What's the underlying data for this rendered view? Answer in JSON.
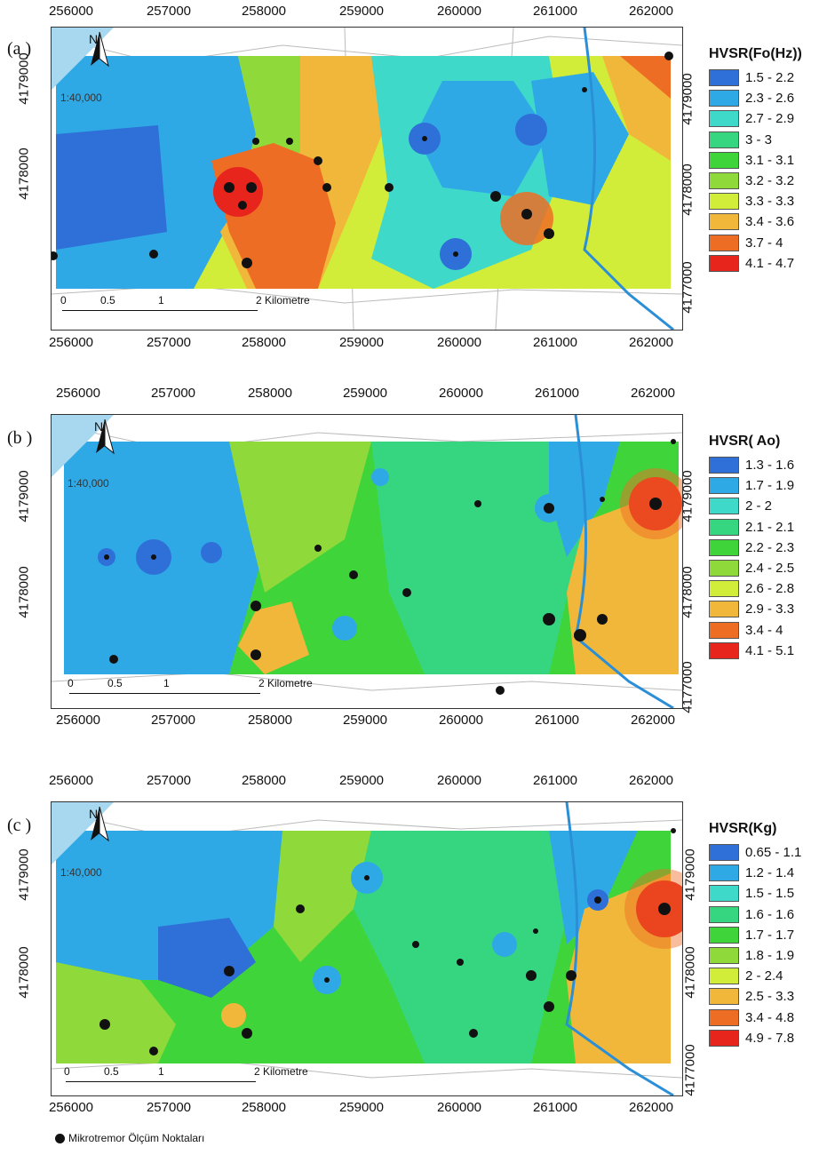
{
  "panels": [
    {
      "letter": "(a )",
      "legend_title": "HVSR(Fo(Hz))",
      "legend": [
        {
          "label": "1.5 - 2.2",
          "color": "#2f6fd8"
        },
        {
          "label": "2.3 - 2.6",
          "color": "#2fa9e6"
        },
        {
          "label": "2.7 - 2.9",
          "color": "#3fd9c9"
        },
        {
          "label": "3 - 3",
          "color": "#36d680"
        },
        {
          "label": "3.1 - 3.1",
          "color": "#3fd43a"
        },
        {
          "label": "3.2 - 3.2",
          "color": "#8fd93a"
        },
        {
          "label": "3.3 - 3.3",
          "color": "#d2ec3a"
        },
        {
          "label": "3.4 - 3.6",
          "color": "#f1b73a"
        },
        {
          "label": "3.7 - 4",
          "color": "#ee6d24"
        },
        {
          "label": "4.1 - 4.7",
          "color": "#e8251c"
        }
      ]
    },
    {
      "letter": "(b )",
      "legend_title": "HVSR( Ao)",
      "legend": [
        {
          "label": "1.3 - 1.6",
          "color": "#2f6fd8"
        },
        {
          "label": "1.7 - 1.9",
          "color": "#2fa9e6"
        },
        {
          "label": "2 - 2",
          "color": "#3fd9c9"
        },
        {
          "label": "2.1 - 2.1",
          "color": "#36d680"
        },
        {
          "label": "2.2 - 2.3",
          "color": "#3fd43a"
        },
        {
          "label": "2.4 - 2.5",
          "color": "#8fd93a"
        },
        {
          "label": "2.6 - 2.8",
          "color": "#d2ec3a"
        },
        {
          "label": "2.9 - 3.3",
          "color": "#f1b73a"
        },
        {
          "label": "3.4 - 4",
          "color": "#ee6d24"
        },
        {
          "label": "4.1 - 5.1",
          "color": "#e8251c"
        }
      ]
    },
    {
      "letter": "(c )",
      "legend_title": "HVSR(Kg)",
      "legend": [
        {
          "label": "0.65 - 1.1",
          "color": "#2f6fd8"
        },
        {
          "label": "1.2 - 1.4",
          "color": "#2fa9e6"
        },
        {
          "label": "1.5 - 1.5",
          "color": "#3fd9c9"
        },
        {
          "label": "1.6 - 1.6",
          "color": "#36d680"
        },
        {
          "label": "1.7 - 1.7",
          "color": "#3fd43a"
        },
        {
          "label": "1.8 - 1.9",
          "color": "#8fd93a"
        },
        {
          "label": "2 - 2.4",
          "color": "#d2ec3a"
        },
        {
          "label": "2.5 - 3.3",
          "color": "#f1b73a"
        },
        {
          "label": "3.4 - 4.8",
          "color": "#ee6d24"
        },
        {
          "label": "4.9 - 7.8",
          "color": "#e8251c"
        }
      ]
    }
  ],
  "x_ticks": [
    "256000",
    "257000",
    "258000",
    "259000",
    "260000",
    "261000",
    "262000"
  ],
  "y_ticks": [
    "4179000",
    "4178000",
    "4177000"
  ],
  "north_label": "N",
  "map_scale": "1:40,000",
  "scale_bar": {
    "labels": [
      "0",
      "0.5",
      "1",
      "2 Kilometre"
    ]
  },
  "footer_label": "Mikrotremor Ölçüm Noktaları"
}
